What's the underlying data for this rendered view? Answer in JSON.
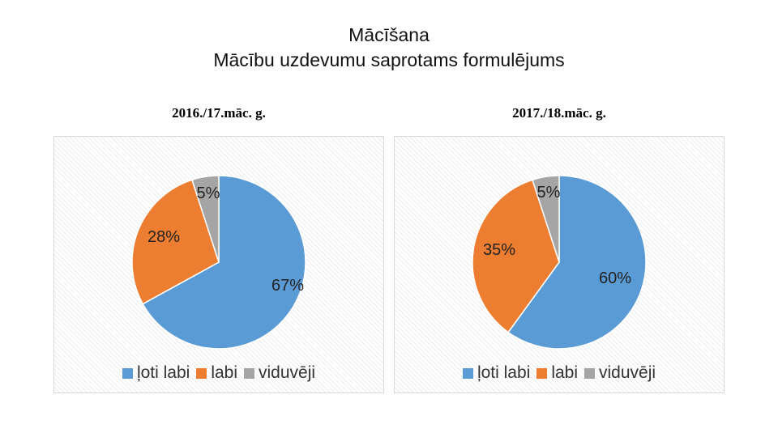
{
  "title": {
    "line1": "Mācīšana",
    "line2": "Mācību uzdevumu saprotams formulējums"
  },
  "colors": {
    "ļoti labi": "#5B9BD5",
    "labi": "#ED7D31",
    "viduvēji": "#A5A5A5"
  },
  "chart_data": [
    {
      "type": "pie",
      "title": "2016./17.māc. g.",
      "categories": [
        "ļoti labi",
        "labi",
        "viduvēji"
      ],
      "values": [
        67,
        28,
        5
      ],
      "data_labels": [
        "67%",
        "28%",
        "5%"
      ],
      "legend": "bottom"
    },
    {
      "type": "pie",
      "title": "2017./18.māc. g.",
      "categories": [
        "ļoti labi",
        "labi",
        "viduvēji"
      ],
      "values": [
        60,
        35,
        5
      ],
      "data_labels": [
        "60%",
        "35%",
        "5%"
      ],
      "legend": "bottom"
    }
  ]
}
